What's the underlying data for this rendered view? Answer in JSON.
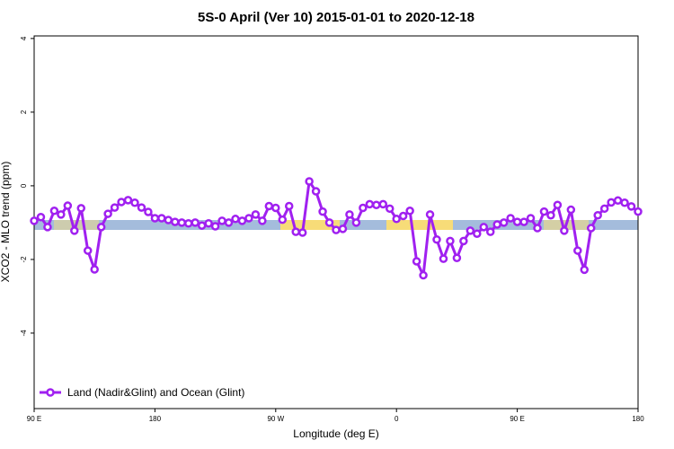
{
  "chart_data": {
    "type": "line",
    "title": "5S-0 April (Ver 10)   2015-01-01 to 2020-12-18",
    "x_label": "Longitude (deg E)",
    "y_label": "XCO2 - MLO trend (ppm)",
    "x": [
      90,
      95,
      100,
      105,
      110,
      115,
      120,
      125,
      130,
      135,
      140,
      145,
      150,
      155,
      160,
      165,
      170,
      175,
      180,
      185,
      190,
      195,
      200,
      205,
      210,
      215,
      220,
      225,
      230,
      235,
      240,
      245,
      250,
      255,
      260,
      265,
      270,
      275,
      280,
      285,
      290,
      295,
      300,
      305,
      310,
      315,
      320,
      325,
      330,
      335,
      340,
      345,
      350,
      355,
      360,
      365,
      370,
      375,
      380,
      385,
      390,
      395,
      400,
      405,
      410,
      415,
      420,
      425,
      430,
      435,
      440,
      445,
      450,
      455,
      460,
      465,
      470,
      475,
      480,
      485,
      490,
      495,
      500,
      505,
      510,
      515,
      520,
      525,
      530,
      535,
      540
    ],
    "series": [
      {
        "name": "Land (Nadir&Glint) and Ocean (Glint)",
        "color": "#a020f0",
        "values": [
          -0.95,
          -0.85,
          -1.12,
          -0.68,
          -0.78,
          -0.54,
          -1.22,
          -0.61,
          -1.76,
          -2.27,
          -1.12,
          -0.76,
          -0.59,
          -0.44,
          -0.39,
          -0.46,
          -0.59,
          -0.71,
          -0.88,
          -0.88,
          -0.93,
          -0.98,
          -1.0,
          -1.02,
          -1.0,
          -1.08,
          -1.02,
          -1.1,
          -0.95,
          -1.0,
          -0.9,
          -0.95,
          -0.88,
          -0.78,
          -0.95,
          -0.55,
          -0.6,
          -0.92,
          -0.55,
          -1.25,
          -1.27,
          0.12,
          -0.15,
          -0.7,
          -1.0,
          -1.2,
          -1.17,
          -0.78,
          -1.0,
          -0.6,
          -0.5,
          -0.52,
          -0.5,
          -0.62,
          -0.9,
          -0.82,
          -0.68,
          -2.05,
          -2.43,
          -0.78,
          -1.46,
          -1.98,
          -1.5,
          -1.96,
          -1.5,
          -1.22,
          -1.3,
          -1.12,
          -1.25,
          -1.05,
          -1.0,
          -0.88,
          -0.98,
          -0.98,
          -0.88,
          -1.15,
          -0.7,
          -0.8,
          -0.52,
          -1.22,
          -0.65,
          -1.76,
          -2.28,
          -1.15,
          -0.8,
          -0.62,
          -0.45,
          -0.4,
          -0.46,
          -0.56,
          -0.7
        ]
      }
    ],
    "xlim": [
      90,
      540
    ],
    "xticks": [
      {
        "value": 90,
        "label": "90 E"
      },
      180,
      {
        "value": 270,
        "label": "90 W"
      },
      {
        "value": 360,
        "label": "0"
      },
      {
        "value": 450,
        "label": "90 E"
      },
      {
        "value": 540,
        "label": "180"
      }
    ],
    "ylim": [
      -6.05,
      4.07
    ],
    "yticks": [
      -4,
      -2,
      0,
      2,
      4
    ],
    "legend": "bottom-left"
  }
}
